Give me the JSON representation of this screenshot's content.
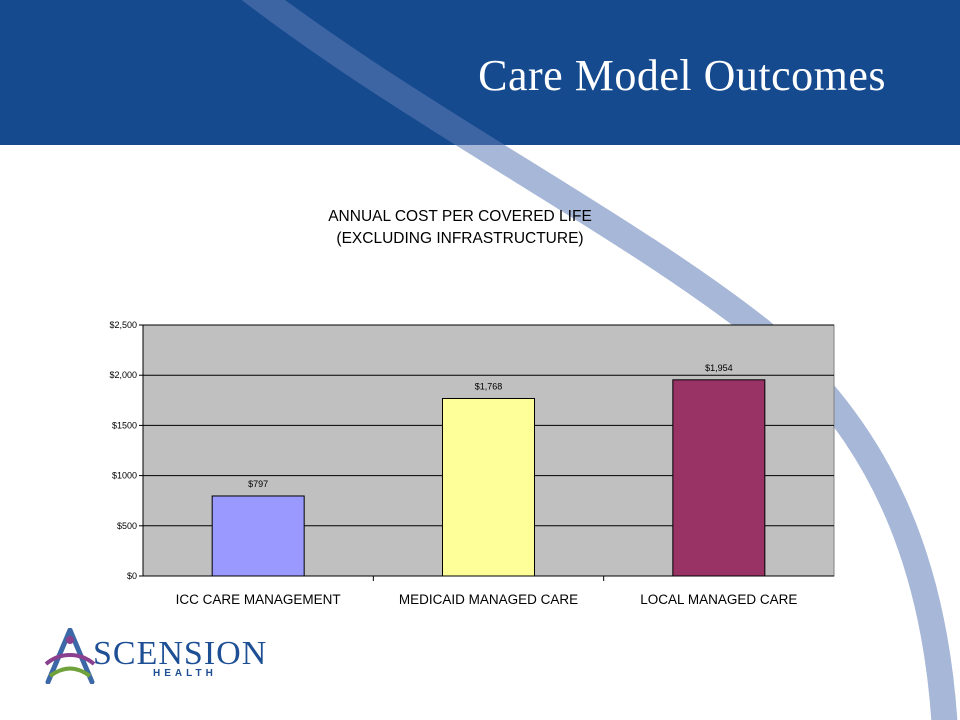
{
  "slide": {
    "title": "Care Model Outcomes"
  },
  "logo": {
    "word": "SCENSION",
    "sub": "HEALTH"
  },
  "colors": {
    "header": "#154a8f",
    "plot_bg": "#c0c0c0",
    "bar_icc": "#9999ff",
    "bar_medicaid": "#ffff99",
    "bar_local": "#993366"
  },
  "chart_data": {
    "type": "bar",
    "title_lines": [
      "ANNUAL COST PER COVERED LIFE",
      "(EXCLUDING INFRASTRUCTURE)"
    ],
    "categories": [
      "ICC CARE MANAGEMENT",
      "MEDICAID MANAGED CARE",
      "LOCAL MANAGED CARE"
    ],
    "values": [
      797,
      1768,
      1954
    ],
    "data_labels": [
      "$797",
      "$1,768",
      "$1,954"
    ],
    "bar_colors": [
      "#9999ff",
      "#ffff99",
      "#993366"
    ],
    "ylim": [
      0,
      2500
    ],
    "yticks": [
      0,
      500,
      1000,
      1500,
      2000,
      2500
    ],
    "ytick_labels": [
      "$0",
      "$500",
      "$1000",
      "$1500",
      "$2,000",
      "$2,500"
    ],
    "grid": true,
    "legend": "none",
    "xlabel": "",
    "ylabel": ""
  }
}
